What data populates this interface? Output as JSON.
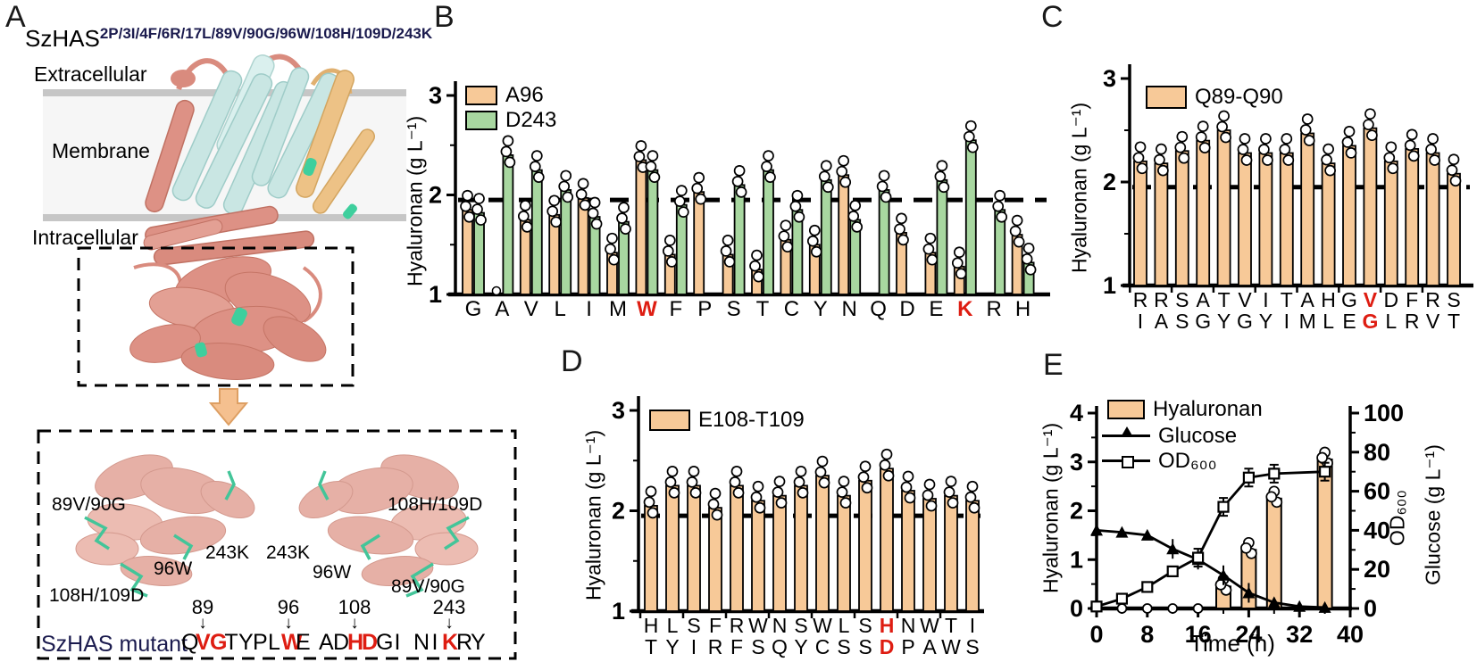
{
  "panel_labels": {
    "A": "A",
    "B": "B",
    "C": "C",
    "D": "D",
    "E": "E"
  },
  "colors": {
    "bar_orange": "#F7C998",
    "bar_green": "#A8D7A0",
    "red_text": "#DE1D12",
    "dark_navy": "#1B1B4E",
    "arrow_orange": "#F5C08F",
    "protein_salmon": "#DD9185",
    "protein_cyan": "#C9E6E3",
    "protein_orange_helix": "#EDC286",
    "protein_green": "#3ECF9D",
    "membrane_gray": "#C6C6C6"
  },
  "panelA": {
    "title_base": "SzHAS",
    "title_sup": "2P/3I/4F/6R/17L/89V/90G/96W/108H/109D/243K",
    "region_labels": {
      "extracellular": "Extracellular",
      "membrane": "Membrane",
      "intracellular": "Intracellular"
    },
    "inset_labels_left": [
      "89V/90G",
      "96W",
      "243K",
      "108H/109D"
    ],
    "inset_labels_right": [
      "243K",
      "96W",
      "108H/109D",
      "89V/90G"
    ],
    "mutant_label": "SzHAS mutant",
    "sequence": [
      {
        "ch": "Q",
        "red": false
      },
      {
        "ch": "V",
        "red": true
      },
      {
        "ch": "G",
        "red": true
      },
      {
        "ch": "T",
        "red": false
      },
      {
        "ch": "Y",
        "red": false
      },
      {
        "ch": "P",
        "red": false
      },
      {
        "ch": "L",
        "red": false
      },
      {
        "ch": "W",
        "red": true
      },
      {
        "ch": "E",
        "red": false
      },
      {
        "ch": " ",
        "red": false
      },
      {
        "ch": "A",
        "red": false
      },
      {
        "ch": "D",
        "red": false
      },
      {
        "ch": "H",
        "red": true
      },
      {
        "ch": "D",
        "red": true
      },
      {
        "ch": "G",
        "red": false
      },
      {
        "ch": "I",
        "red": false
      },
      {
        "ch": " ",
        "red": false
      },
      {
        "ch": "N",
        "red": false
      },
      {
        "ch": "I",
        "red": false
      },
      {
        "ch": "K",
        "red": true
      },
      {
        "ch": "R",
        "red": false
      },
      {
        "ch": "Y",
        "red": false
      }
    ],
    "markers": [
      {
        "num": "89",
        "letter_index": 1
      },
      {
        "num": "96",
        "letter_index": 7
      },
      {
        "num": "108",
        "letter_index": 12
      },
      {
        "num": "243",
        "letter_index": 19
      }
    ]
  },
  "chart_data": [
    {
      "id": "B",
      "type": "bar",
      "grouped": true,
      "ylabel": "Hyaluronan (g L⁻¹)",
      "ylim": [
        1,
        3
      ],
      "yticks": [
        1,
        2,
        3
      ],
      "yticks_minor": [
        1.5,
        2.5
      ],
      "ref_line": 1.95,
      "categories": [
        "G",
        "A",
        "V",
        "L",
        "I",
        "M",
        "W",
        "F",
        "P",
        "S",
        "T",
        "C",
        "Y",
        "N",
        "Q",
        "D",
        "E",
        "K",
        "R",
        "H"
      ],
      "red_categories": [
        "W",
        "K"
      ],
      "series": [
        {
          "name": "A96",
          "color_key": "bar_orange",
          "values": [
            1.85,
            null,
            1.75,
            1.8,
            1.97,
            1.42,
            2.35,
            1.4,
            2.03,
            1.4,
            1.25,
            1.55,
            1.5,
            2.2,
            null,
            1.62,
            1.42,
            1.28,
            null,
            1.6
          ]
        },
        {
          "name": "D243",
          "color_key": "bar_green",
          "values": [
            1.82,
            2.4,
            2.25,
            2.05,
            1.78,
            1.73,
            2.25,
            1.9,
            null,
            2.1,
            2.25,
            1.85,
            2.15,
            1.75,
            2.05,
            null,
            2.15,
            2.55,
            1.85,
            1.32
          ]
        }
      ],
      "baseline_circles": [
        {
          "category": "A",
          "series": "A96"
        }
      ]
    },
    {
      "id": "C",
      "type": "bar",
      "grouped": false,
      "legend": "Q89-Q90",
      "ylabel": "Hyaluronan (g L⁻¹)",
      "ylim": [
        1,
        3
      ],
      "yticks": [
        1,
        2,
        3
      ],
      "yticks_minor": [
        1.5,
        2.5
      ],
      "ref_line": 1.95,
      "categories_row1": [
        "R",
        "R",
        "S",
        "A",
        "T",
        "V",
        "I",
        "T",
        "A",
        "H",
        "G",
        "V",
        "D",
        "F",
        "R",
        "S"
      ],
      "categories_row2": [
        "I",
        "A",
        "S",
        "G",
        "Y",
        "G",
        "Y",
        "I",
        "M",
        "L",
        "E",
        "G",
        "L",
        "R",
        "V",
        "T"
      ],
      "red_index": 11,
      "values": [
        2.2,
        2.18,
        2.3,
        2.4,
        2.5,
        2.28,
        2.28,
        2.28,
        2.47,
        2.18,
        2.35,
        2.52,
        2.2,
        2.32,
        2.28,
        2.08
      ]
    },
    {
      "id": "D",
      "type": "bar",
      "grouped": false,
      "legend": "E108-T109",
      "ylabel": "Hyaluronan (g L⁻¹)",
      "ylim": [
        1,
        3
      ],
      "yticks": [
        1,
        2,
        3
      ],
      "yticks_minor": [
        1.5,
        2.5
      ],
      "ref_line": 1.95,
      "categories_row1": [
        "H",
        "L",
        "S",
        "F",
        "R",
        "W",
        "N",
        "S",
        "W",
        "L",
        "S",
        "H",
        "N",
        "W",
        "T",
        "I"
      ],
      "categories_row2": [
        "T",
        "Y",
        "I",
        "R",
        "F",
        "S",
        "Q",
        "Y",
        "C",
        "S",
        "S",
        "D",
        "P",
        "A",
        "W",
        "S"
      ],
      "red_index": 11,
      "values": [
        2.05,
        2.25,
        2.25,
        2.03,
        2.25,
        2.1,
        2.15,
        2.25,
        2.35,
        2.15,
        2.3,
        2.42,
        2.2,
        2.12,
        2.15,
        2.1
      ]
    },
    {
      "id": "E",
      "type": "bar+line",
      "xlabel": "Time (h)",
      "ylabel_left": "Hyaluronan (g L⁻¹)",
      "ylabel_right": [
        "OD₆₀₀",
        "Glucose  (g L⁻¹)"
      ],
      "xlim": [
        0,
        40
      ],
      "xticks": [
        0,
        8,
        16,
        24,
        32,
        40
      ],
      "xticks_minor": [
        4,
        12,
        20,
        28,
        36
      ],
      "ylim_left": [
        0,
        4
      ],
      "yticks_left": [
        0,
        1,
        2,
        3,
        4
      ],
      "ylim_right": [
        0,
        100
      ],
      "yticks_right": [
        0,
        20,
        40,
        60,
        80,
        100
      ],
      "legend": [
        {
          "name": "Hyaluronan",
          "marker": "bar"
        },
        {
          "name": "Glucose",
          "marker": "triangle"
        },
        {
          "name": "OD₆₀₀",
          "marker": "square"
        }
      ],
      "series": [
        {
          "name": "Hyaluronan",
          "type": "bar",
          "axis": "left",
          "x": [
            20,
            24,
            28,
            36
          ],
          "values": [
            0.45,
            1.2,
            2.25,
            3.05
          ]
        },
        {
          "name": "Hyaluronan zero points",
          "type": "scatter",
          "axis": "left",
          "x": [
            4,
            8,
            12,
            16
          ],
          "values": [
            0,
            0,
            0,
            0
          ]
        },
        {
          "name": "Glucose",
          "type": "line",
          "axis": "right",
          "marker": "triangle",
          "x": [
            0,
            4,
            8,
            12,
            16,
            20,
            24,
            28,
            32,
            36
          ],
          "values": [
            40,
            39,
            37.5,
            30.5,
            25,
            17,
            8,
            3,
            1,
            0.5
          ]
        },
        {
          "name": "OD600",
          "type": "line",
          "axis": "right",
          "marker": "square",
          "x": [
            0,
            4,
            8,
            12,
            16,
            20,
            24,
            28,
            36
          ],
          "values": [
            1,
            5,
            11,
            19,
            26,
            52,
            67,
            69,
            70
          ]
        }
      ]
    }
  ]
}
